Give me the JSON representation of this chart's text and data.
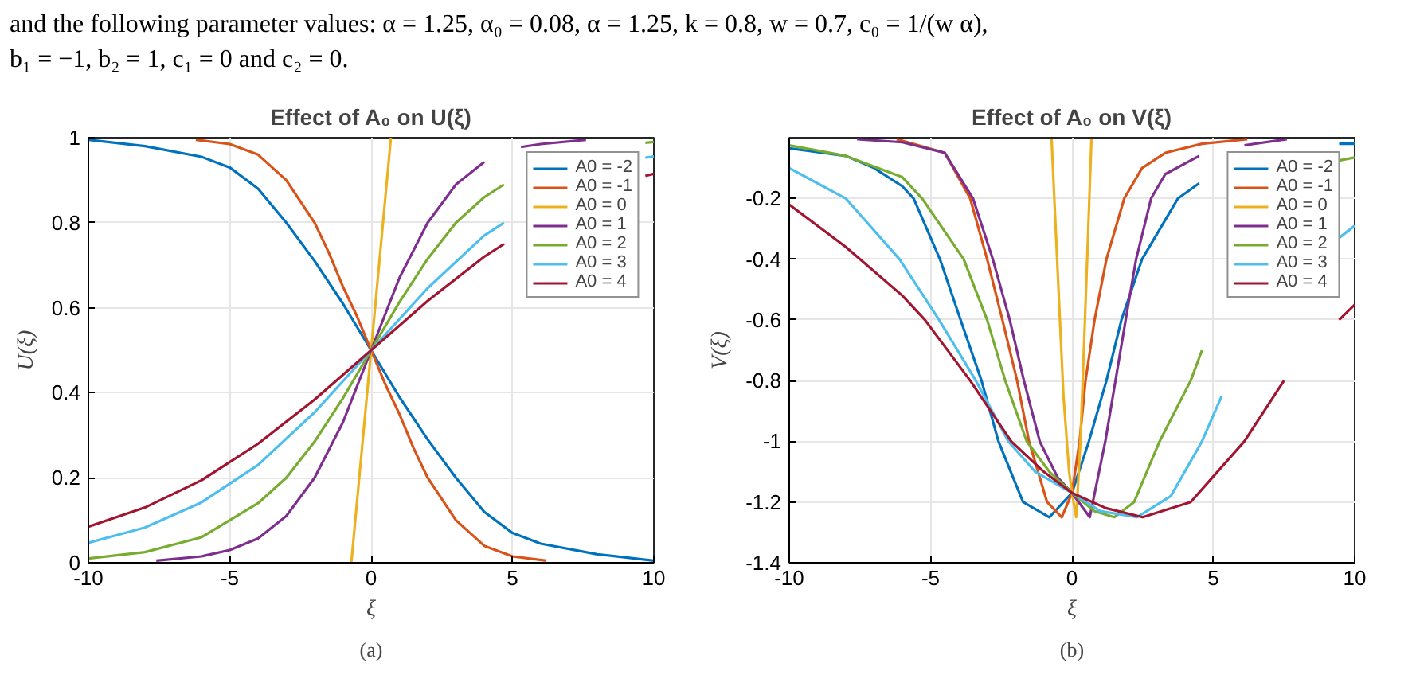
{
  "chart_data": [
    {
      "type": "line",
      "title": "Effect of A₀ on U(ξ)",
      "xlabel": "ξ",
      "ylabel": "U(ξ)",
      "annotations": [
        "and the following parameter values: α = 1.25, α₀ = 0.08, α = 1.25, k = 0.8, w = 0.7, c₀ = 1/(w α),",
        "b₁ = −1, b₂ = 1, c₁ = 0 and c₂ = 0.",
        "(a)"
      ],
      "xlim": [
        -10,
        10
      ],
      "xticks": [
        -10,
        -5,
        0,
        5,
        10
      ],
      "ylim": [
        0,
        1
      ],
      "yticks": [
        0,
        0.2,
        0.4,
        0.6,
        0.8,
        1
      ],
      "grid": true,
      "legend": "top right",
      "series": [
        {
          "name": "A0 = -2",
          "color": "#0072bd",
          "x": [
            -10,
            -8,
            -6,
            -5,
            -4,
            -3,
            -2,
            -1,
            0,
            1,
            2,
            3,
            4,
            5,
            6,
            8,
            10
          ],
          "values": [
            0.995,
            0.98,
            0.955,
            0.93,
            0.88,
            0.8,
            0.71,
            0.61,
            0.5,
            0.39,
            0.29,
            0.2,
            0.12,
            0.07,
            0.045,
            0.02,
            0.005
          ]
        },
        {
          "name": "A0 = -1",
          "color": "#d95319",
          "x": [
            -6.2,
            -5,
            -4,
            -3,
            -2,
            -1.5,
            -1,
            -0.5,
            0,
            0.5,
            1,
            1.5,
            2,
            3,
            4,
            5,
            6.2
          ],
          "values": [
            0.995,
            0.985,
            0.96,
            0.9,
            0.8,
            0.73,
            0.65,
            0.58,
            0.5,
            0.42,
            0.35,
            0.27,
            0.2,
            0.1,
            0.04,
            0.015,
            0.005
          ]
        },
        {
          "name": "A0 = 0",
          "color": "#edb120",
          "x": [
            -0.7,
            0,
            0.7
          ],
          "values": [
            0,
            0.5,
            1
          ]
        },
        {
          "name": "A0 = 1",
          "color": "#7e2f8e",
          "x": [
            -7.6,
            -6,
            -5,
            -4,
            -3,
            -2,
            -1,
            0,
            1,
            2,
            3,
            4,
            4.8,
            5.3,
            6,
            7.6
          ],
          "values": [
            0.005,
            0.015,
            0.03,
            0.057,
            0.11,
            0.2,
            0.33,
            0.5,
            0.67,
            0.8,
            0.89,
            0.943,
            null,
            0.978,
            0.985,
            0.995
          ]
        },
        {
          "name": "A0 = 2",
          "color": "#77ac30",
          "x": [
            -10,
            -8,
            -6,
            -4,
            -3,
            -2,
            -1,
            0,
            1,
            2,
            3,
            4,
            4.7,
            7,
            9.7,
            10
          ],
          "values": [
            0.01,
            0.025,
            0.06,
            0.14,
            0.2,
            0.285,
            0.387,
            0.5,
            0.613,
            0.715,
            0.8,
            0.86,
            0.89,
            null,
            0.988,
            0.99
          ]
        },
        {
          "name": "A0 = 3",
          "color": "#4dbeee",
          "x": [
            -10,
            -8,
            -6,
            -4,
            -2,
            0,
            2,
            4,
            4.7,
            7,
            9.7,
            10
          ],
          "values": [
            0.047,
            0.083,
            0.142,
            0.23,
            0.354,
            0.5,
            0.646,
            0.77,
            0.8,
            null,
            0.953,
            0.956
          ]
        },
        {
          "name": "A0 = 4",
          "color": "#a2142f",
          "x": [
            -10,
            -8,
            -6,
            -4,
            -2,
            0,
            2,
            4,
            4.7,
            7,
            9.7,
            10
          ],
          "values": [
            0.085,
            0.13,
            0.194,
            0.28,
            0.384,
            0.5,
            0.616,
            0.72,
            0.75,
            null,
            0.91,
            0.915
          ]
        }
      ]
    },
    {
      "type": "line",
      "title": "Effect of A₀ on V(ξ)",
      "xlabel": "ξ",
      "ylabel": "V(ξ)",
      "annotations": [
        "(b)"
      ],
      "xlim": [
        -10,
        10
      ],
      "xticks": [
        -10,
        -5,
        0,
        5,
        10
      ],
      "ylim": [
        -1.4,
        0
      ],
      "yticks": [
        -1.4,
        -1.2,
        -1,
        -0.8,
        -0.6,
        -0.4,
        -0.2
      ],
      "grid": true,
      "legend": "top right",
      "series": [
        {
          "name": "A0 = -2",
          "color": "#0072bd",
          "x": [
            -10,
            -8,
            -7,
            -6,
            -5.6,
            -4.67,
            -3.94,
            -3.2,
            -2.6,
            -1.73,
            -0.8,
            0,
            0.6,
            1.22,
            1.75,
            2.48,
            3.75,
            4.5,
            7,
            9.45,
            10
          ],
          "values": [
            -0.035,
            -0.06,
            -0.1,
            -0.16,
            -0.2,
            -0.4,
            -0.6,
            -0.8,
            -1,
            -1.2,
            -1.25,
            -1.17,
            -1,
            -0.8,
            -0.6,
            -0.4,
            -0.2,
            -0.15,
            null,
            -0.02,
            -0.02
          ]
        },
        {
          "name": "A0 = -1",
          "color": "#d95319",
          "x": [
            -6.2,
            -4.5,
            -3.6,
            -3,
            -2.46,
            -1.94,
            -1.52,
            -0.88,
            -0.36,
            0,
            0.27,
            0.48,
            0.8,
            1.22,
            1.85,
            2.48,
            3.3,
            4.6,
            6.2
          ],
          "values": [
            -0.005,
            -0.05,
            -0.2,
            -0.4,
            -0.6,
            -0.8,
            -1,
            -1.2,
            -1.25,
            -1.17,
            -1,
            -0.8,
            -0.6,
            -0.4,
            -0.2,
            -0.1,
            -0.05,
            -0.02,
            -0.005
          ]
        },
        {
          "name": "A0 = 0",
          "color": "#edb120",
          "x": [
            -0.72,
            -0.5,
            -0.3,
            -0.1,
            0,
            0.15,
            0.3,
            0.5,
            0.69
          ],
          "values": [
            -0.005,
            -0.45,
            -0.85,
            -1.1,
            -1.17,
            -1.25,
            -1,
            -0.5,
            -0.005
          ]
        },
        {
          "name": "A0 = 1",
          "color": "#7e2f8e",
          "x": [
            -7.6,
            -6,
            -4.5,
            -3.5,
            -2.8,
            -2.2,
            -1.7,
            -1.14,
            -0.5,
            0,
            0.63,
            1.18,
            1.54,
            1.9,
            2.27,
            2.8,
            3.3,
            4.5,
            5.3,
            6.1,
            7.6
          ],
          "values": [
            -0.005,
            -0.015,
            -0.05,
            -0.2,
            -0.4,
            -0.6,
            -0.8,
            -1,
            -1.12,
            -1.17,
            -1.25,
            -1,
            -0.8,
            -0.6,
            -0.4,
            -0.2,
            -0.12,
            -0.06,
            null,
            -0.025,
            -0.005
          ]
        },
        {
          "name": "A0 = 2",
          "color": "#77ac30",
          "x": [
            -10,
            -8,
            -6,
            -5.3,
            -3.83,
            -3,
            -2.36,
            -1.6,
            -0.8,
            0,
            0.8,
            1.5,
            2.2,
            3.1,
            4.2,
            4.6,
            7,
            9.45,
            10
          ],
          "values": [
            -0.025,
            -0.06,
            -0.13,
            -0.2,
            -0.4,
            -0.6,
            -0.8,
            -1,
            -1.1,
            -1.17,
            -1.23,
            -1.25,
            -1.2,
            -1,
            -0.8,
            -0.7,
            null,
            -0.075,
            -0.065
          ]
        },
        {
          "name": "A0 = 3",
          "color": "#4dbeee",
          "x": [
            -10,
            -8,
            -6.1,
            -4.7,
            -3.4,
            -2.25,
            -1.3,
            0,
            1,
            2.3,
            3.5,
            4.6,
            5.3,
            7,
            9.45,
            10
          ],
          "values": [
            -0.1,
            -0.2,
            -0.4,
            -0.6,
            -0.8,
            -1,
            -1.1,
            -1.17,
            -1.23,
            -1.25,
            -1.18,
            -1,
            -0.85,
            null,
            -0.33,
            -0.29
          ]
        },
        {
          "name": "A0 = 4",
          "color": "#a2142f",
          "x": [
            -10,
            -8,
            -6,
            -5.2,
            -3.6,
            -2.15,
            -1,
            0,
            1.2,
            2.5,
            4.2,
            6.1,
            7.5,
            8.5,
            9.45,
            10
          ],
          "values": [
            -0.22,
            -0.36,
            -0.52,
            -0.6,
            -0.8,
            -1,
            -1.1,
            -1.17,
            -1.22,
            -1.25,
            -1.2,
            -1,
            -0.8,
            null,
            -0.6,
            -0.55
          ]
        }
      ]
    }
  ]
}
